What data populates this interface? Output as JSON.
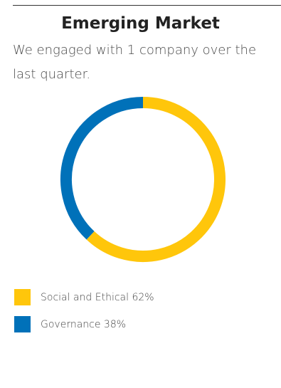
{
  "header": {
    "title": "Emerging Market",
    "description": "We engaged with 1 company over the last quarter."
  },
  "chart_data": {
    "type": "pie",
    "variant": "donut",
    "title": "",
    "start_angle_deg": 0,
    "direction": "clockwise",
    "slices": [
      {
        "label": "Social and Ethical",
        "value": 62,
        "color": "#FFC60B"
      },
      {
        "label": "Governance",
        "value": 38,
        "color": "#0071B9"
      }
    ],
    "legend": {
      "placement": "bottom-left",
      "items": [
        {
          "label": "Social and Ethical 62%",
          "color": "#FFC60B"
        },
        {
          "label": "Governance 38%",
          "color": "#0071B9"
        }
      ]
    }
  }
}
